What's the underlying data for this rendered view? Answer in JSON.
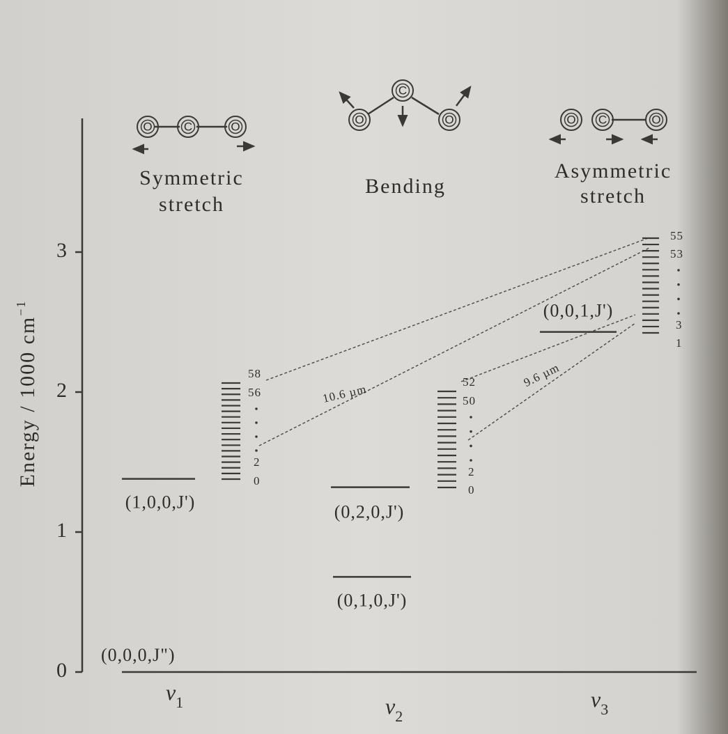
{
  "energy_axis": {
    "label": "Energy / 1000 cm",
    "label_superscript": "−1",
    "ticks": [
      0,
      1,
      2,
      3
    ]
  },
  "modes": [
    {
      "name": [
        "Symmetric",
        "stretch"
      ],
      "atoms": [
        "O",
        "C",
        "O"
      ],
      "axis_label": {
        "symbol": "v",
        "subscript": "1"
      }
    },
    {
      "name": [
        "Bending"
      ],
      "atoms": [
        "O",
        "C",
        "O"
      ],
      "axis_label": {
        "symbol": "v",
        "subscript": "2"
      }
    },
    {
      "name": [
        "Asymmetric",
        "stretch"
      ],
      "atoms": [
        "O",
        "C",
        "O"
      ],
      "axis_label": {
        "symbol": "v",
        "subscript": "3"
      }
    }
  ],
  "levels": [
    {
      "label": "(0,0,0,J\")",
      "energy": 0
    },
    {
      "label": "(1,0,0,J')",
      "energy": 1.38
    },
    {
      "label": "(0,2,0,J')",
      "energy": 1.32
    },
    {
      "label": "(0,1,0,J')",
      "energy": 0.68
    },
    {
      "label": "(0,0,1,J')",
      "energy": 2.43
    }
  ],
  "ladders": [
    {
      "labels": [
        "58",
        "56",
        "2",
        "0"
      ]
    },
    {
      "labels": [
        "52",
        "50",
        "2",
        "0"
      ]
    },
    {
      "labels": [
        "55",
        "53",
        "3",
        "1"
      ]
    }
  ],
  "transitions": [
    "10.6 µm",
    "9.6 µm"
  ]
}
